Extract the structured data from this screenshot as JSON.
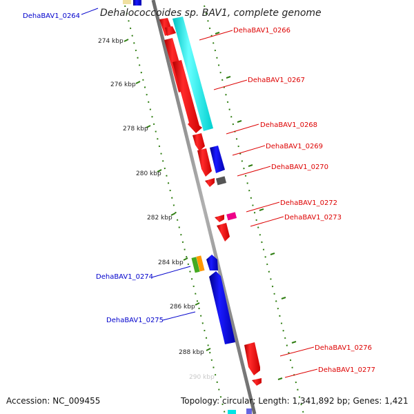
{
  "title": "Dehalococcoides sp. BAV1, complete genome",
  "accession_text": "Accession: NC_009455",
  "summary_text": "Topology: circular; Length: 1,341,892 bp; Genes: 1,421",
  "ticks": {
    "labels": [
      "274 kbp",
      "276 kbp",
      "278 kbp",
      "280 kbp",
      "282 kbp",
      "284 kbp",
      "286 kbp",
      "288 kbp",
      "290 kbp"
    ],
    "faded_label": "290 kbp"
  },
  "genes_left": [
    {
      "label": "DehaBAV1_0264",
      "color": "#0000cc"
    },
    {
      "label": "DehaBAV1_0274",
      "color": "#0000cc"
    },
    {
      "label": "DehaBAV1_0275",
      "color": "#0000cc"
    }
  ],
  "genes_right": [
    {
      "label": "DehaBAV1_0266",
      "color": "#dd0000"
    },
    {
      "label": "DehaBAV1_0267",
      "color": "#dd0000"
    },
    {
      "label": "DehaBAV1_0268",
      "color": "#dd0000"
    },
    {
      "label": "DehaBAV1_0269",
      "color": "#dd0000"
    },
    {
      "label": "DehaBAV1_0270",
      "color": "#dd0000"
    },
    {
      "label": "DehaBAV1_0272",
      "color": "#dd0000"
    },
    {
      "label": "DehaBAV1_0273",
      "color": "#dd0000"
    },
    {
      "label": "DehaBAV1_0276",
      "color": "#dd0000"
    },
    {
      "label": "DehaBAV1_0277",
      "color": "#dd0000"
    }
  ],
  "colors": {
    "backbone": "#8a8a8a",
    "tick_dots": "#2e7d10",
    "red_gene": "#ee0000",
    "blue_gene": "#0000e0",
    "cyan_gene": "#00e5e5",
    "grey_gene": "#555555",
    "pink_gene": "#ee0088",
    "green_gene": "#44aa22",
    "orange_gene": "#ff9900",
    "yellow_gene": "#f0e0a0"
  }
}
